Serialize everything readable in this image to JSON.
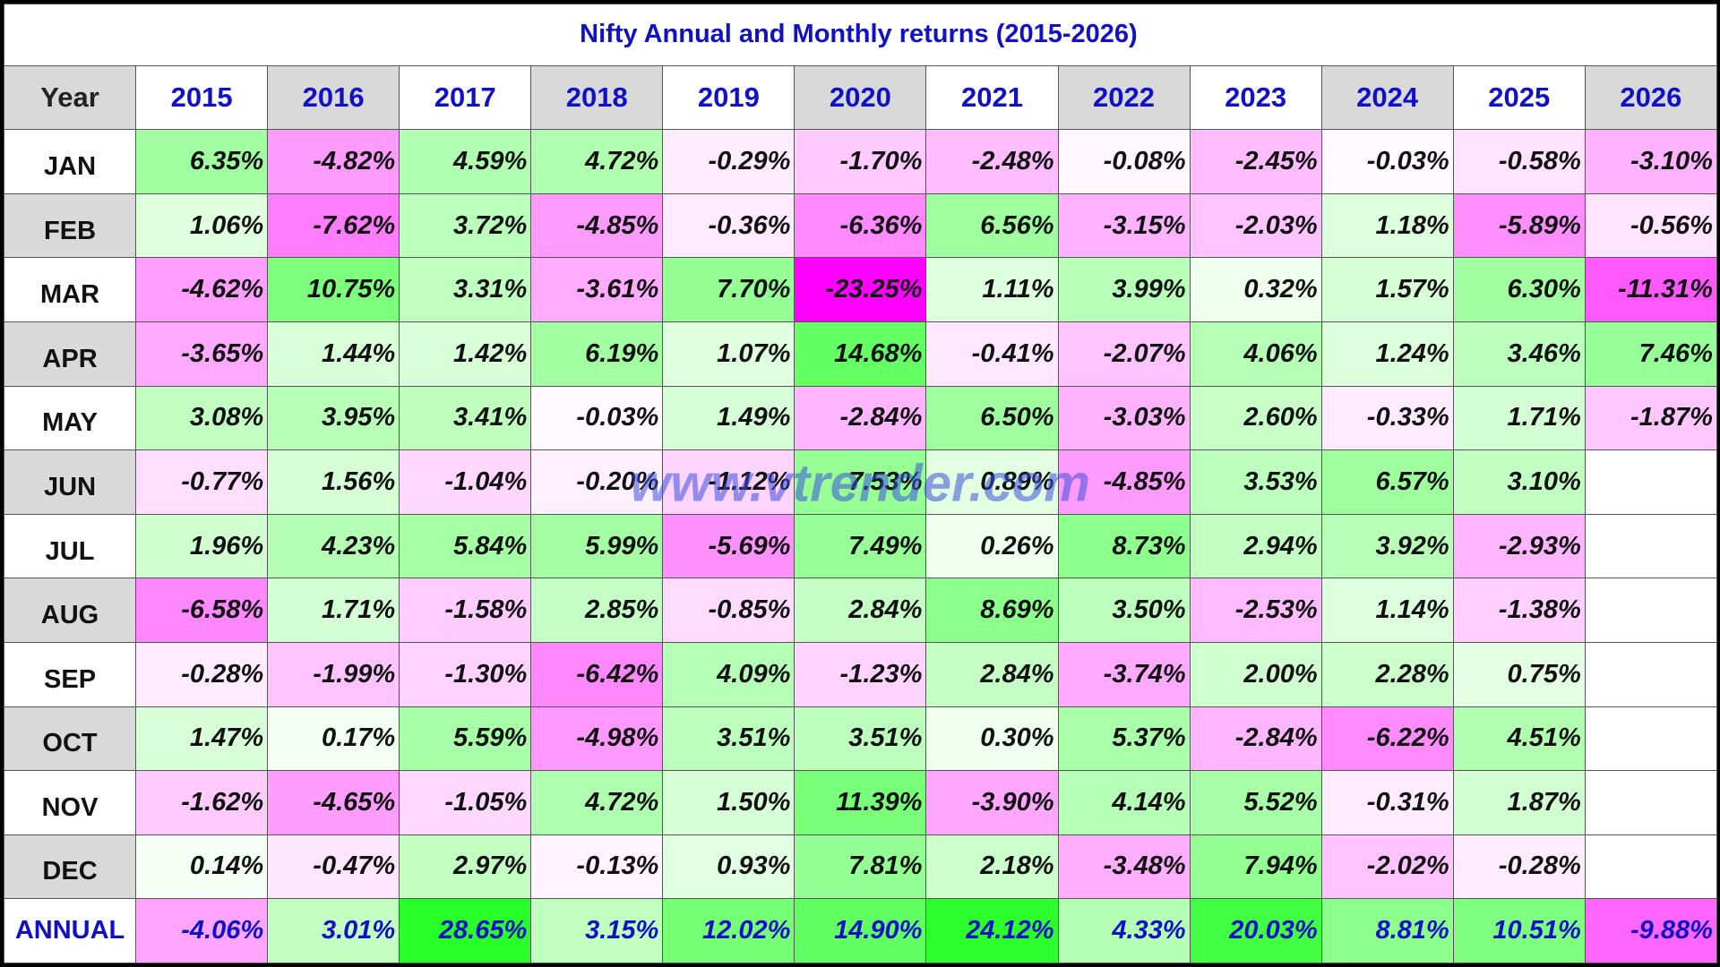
{
  "title": "Nifty Annual and Monthly returns (2015-2026)",
  "watermark": "www.vtrender.com",
  "header": [
    "Year",
    "2015",
    "2016",
    "2017",
    "2018",
    "2019",
    "2020",
    "2021",
    "2022",
    "2023",
    "2024",
    "2025",
    "2026"
  ],
  "rows": [
    {
      "label": "JAN",
      "cells": [
        "6.35%",
        "-4.82%",
        "4.59%",
        "4.72%",
        "-0.29%",
        "-1.70%",
        "-2.48%",
        "-0.08%",
        "-2.45%",
        "-0.03%",
        "-0.58%",
        "-3.10%"
      ]
    },
    {
      "label": "FEB",
      "cells": [
        "1.06%",
        "-7.62%",
        "3.72%",
        "-4.85%",
        "-0.36%",
        "-6.36%",
        "6.56%",
        "-3.15%",
        "-2.03%",
        "1.18%",
        "-5.89%",
        "-0.56%"
      ]
    },
    {
      "label": "MAR",
      "cells": [
        "-4.62%",
        "10.75%",
        "3.31%",
        "-3.61%",
        "7.70%",
        "-23.25%",
        "1.11%",
        "3.99%",
        "0.32%",
        "1.57%",
        "6.30%",
        "-11.31%"
      ]
    },
    {
      "label": "APR",
      "cells": [
        "-3.65%",
        "1.44%",
        "1.42%",
        "6.19%",
        "1.07%",
        "14.68%",
        "-0.41%",
        "-2.07%",
        "4.06%",
        "1.24%",
        "3.46%",
        "7.46%"
      ]
    },
    {
      "label": "MAY",
      "cells": [
        "3.08%",
        "3.95%",
        "3.41%",
        "-0.03%",
        "1.49%",
        "-2.84%",
        "6.50%",
        "-3.03%",
        "2.60%",
        "-0.33%",
        "1.71%",
        "-1.87%"
      ]
    },
    {
      "label": "JUN",
      "cells": [
        "-0.77%",
        "1.56%",
        "-1.04%",
        "-0.20%",
        "-1.12%",
        "7.53%",
        "0.89%",
        "-4.85%",
        "3.53%",
        "6.57%",
        "3.10%",
        null
      ]
    },
    {
      "label": "JUL",
      "cells": [
        "1.96%",
        "4.23%",
        "5.84%",
        "5.99%",
        "-5.69%",
        "7.49%",
        "0.26%",
        "8.73%",
        "2.94%",
        "3.92%",
        "-2.93%",
        null
      ]
    },
    {
      "label": "AUG",
      "cells": [
        "-6.58%",
        "1.71%",
        "-1.58%",
        "2.85%",
        "-0.85%",
        "2.84%",
        "8.69%",
        "3.50%",
        "-2.53%",
        "1.14%",
        "-1.38%",
        null
      ]
    },
    {
      "label": "SEP",
      "cells": [
        "-0.28%",
        "-1.99%",
        "-1.30%",
        "-6.42%",
        "4.09%",
        "-1.23%",
        "2.84%",
        "-3.74%",
        "2.00%",
        "2.28%",
        "0.75%",
        null
      ]
    },
    {
      "label": "OCT",
      "cells": [
        "1.47%",
        "0.17%",
        "5.59%",
        "-4.98%",
        "3.51%",
        "3.51%",
        "0.30%",
        "5.37%",
        "-2.84%",
        "-6.22%",
        "4.51%",
        null
      ]
    },
    {
      "label": "NOV",
      "cells": [
        "-1.62%",
        "-4.65%",
        "-1.05%",
        "4.72%",
        "1.50%",
        "11.39%",
        "-3.90%",
        "4.14%",
        "5.52%",
        "-0.31%",
        "1.87%",
        null
      ]
    },
    {
      "label": "DEC",
      "cells": [
        "0.14%",
        "-0.47%",
        "2.97%",
        "-0.13%",
        "0.93%",
        "7.81%",
        "2.18%",
        "-3.48%",
        "7.94%",
        "-2.02%",
        "-0.28%",
        null
      ]
    },
    {
      "label": "ANNUAL",
      "cells": [
        "-4.06%",
        "3.01%",
        "28.65%",
        "3.15%",
        "12.02%",
        "14.90%",
        "24.12%",
        "4.33%",
        "20.03%",
        "8.81%",
        "10.51%",
        "-9.88%"
      ]
    }
  ]
}
